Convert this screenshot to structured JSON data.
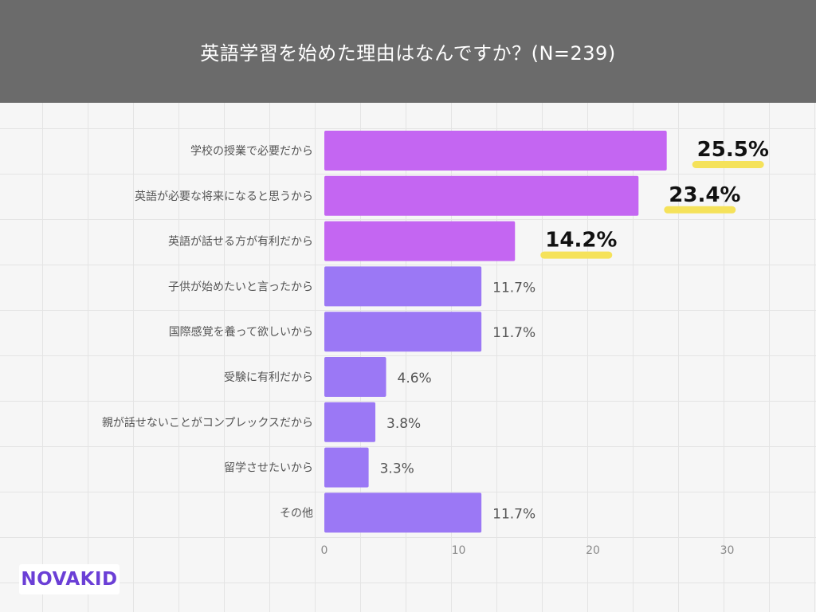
{
  "chart_data": {
    "type": "bar",
    "orientation": "horizontal",
    "title": "英語学習を始めた理由はなんですか？(N=239)",
    "categories": [
      "学校の授業で必要だから",
      "英語が必要な将来になると思うから",
      "英語が話せる方が有利だから",
      "子供が始めたいと言ったから",
      "国際感覚を養って欲しいから",
      "受験に有利だから",
      "親が話せないことがコンプレックスだから",
      "留学させたいから",
      "その他"
    ],
    "values": [
      25.5,
      23.4,
      14.2,
      11.7,
      11.7,
      4.6,
      3.8,
      3.3,
      11.7
    ],
    "labels": [
      "25.5%",
      "23.4%",
      "14.2%",
      "11.7%",
      "11.7%",
      "4.6%",
      "3.8%",
      "3.3%",
      "11.7%"
    ],
    "highlight_top_n": 3,
    "xlim": [
      0,
      32
    ],
    "xticks": [
      0,
      10,
      20,
      30
    ],
    "xlabel": "",
    "ylabel": "",
    "grid": true
  },
  "colors": {
    "header_bg": "#6b6b6b",
    "highlight_bar": "#c466f2",
    "normal_bar": "#9b78f5",
    "underline": "#f5e25a",
    "tick_text": "#8a8a8a",
    "category_text": "#555555",
    "label_text": "#555555",
    "highlight_label_text": "#111111",
    "logo": "#6b3fd6"
  },
  "logo": {
    "text": "NOVAKID"
  }
}
